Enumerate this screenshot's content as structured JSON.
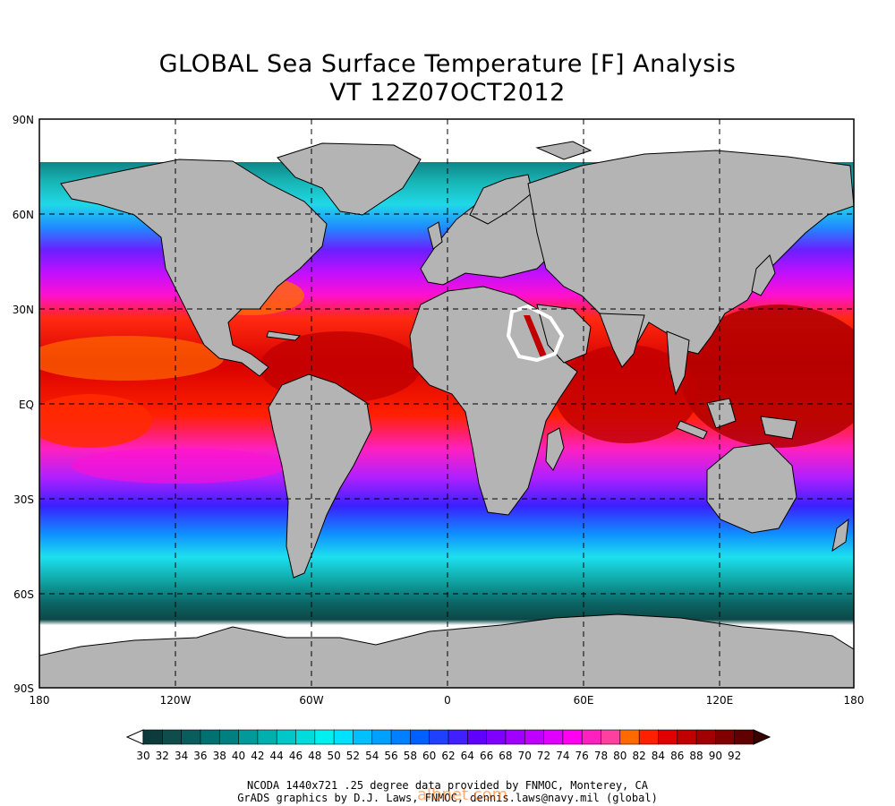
{
  "header": {
    "title": "GLOBAL Sea Surface Temperature [F] Analysis",
    "subtitle": "VT 12Z07OCT2012"
  },
  "map": {
    "lat_ticks": [
      "90N",
      "60N",
      "30N",
      "EQ",
      "30S",
      "60S",
      "90S"
    ],
    "lon_ticks": [
      "180",
      "120W",
      "60W",
      "0",
      "60E",
      "120E",
      "180"
    ],
    "land_color": "#b4b4b4",
    "ice_color": "#ffffff",
    "grid": true,
    "highlight_outline_color": "#ffffff"
  },
  "colorbar": {
    "labels": [
      "30",
      "32",
      "34",
      "36",
      "38",
      "40",
      "42",
      "44",
      "46",
      "48",
      "50",
      "52",
      "54",
      "56",
      "58",
      "60",
      "62",
      "64",
      "66",
      "68",
      "70",
      "72",
      "74",
      "76",
      "78",
      "80",
      "82",
      "84",
      "86",
      "88",
      "90",
      "92"
    ],
    "colors": [
      "#0b3b3b",
      "#0f4d4d",
      "#0a5d5d",
      "#007070",
      "#008080",
      "#009a9a",
      "#00b0b0",
      "#00c8c8",
      "#00dcdc",
      "#00f0f0",
      "#00e0ff",
      "#00c0ff",
      "#00a0ff",
      "#0080ff",
      "#0060ff",
      "#2040ff",
      "#4020ff",
      "#6000ff",
      "#8000ff",
      "#a000ff",
      "#c000ff",
      "#e000ff",
      "#ff00f0",
      "#ff20c0",
      "#ff40a0",
      "#ff6a00",
      "#ff2000",
      "#e00000",
      "#c00000",
      "#a00000",
      "#800000",
      "#600000"
    ],
    "arrow_low_color": "#ffffff",
    "arrow_high_color": "#3a0000"
  },
  "footer": {
    "line1": "NCODA 1440x721 .25 degree data provided by FNMOC, Monterey, CA",
    "line2": "GrADS graphics by D.J. Laws, FNMOC, dennis.laws@navy.mil (global)",
    "watermark": "albnet.com"
  }
}
